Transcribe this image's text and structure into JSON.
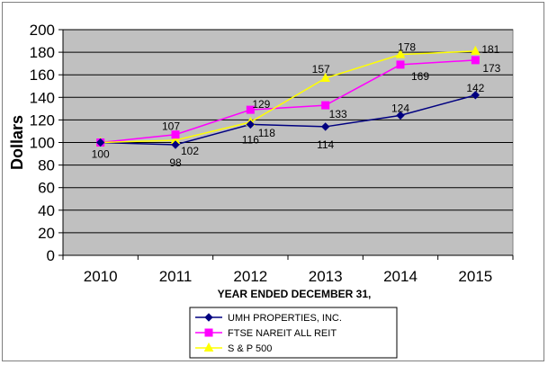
{
  "chart_data": {
    "type": "line",
    "categories": [
      "2010",
      "2011",
      "2012",
      "2013",
      "2014",
      "2015"
    ],
    "series": [
      {
        "name": "UMH PROPERTIES, INC.",
        "values": [
          100,
          98,
          116,
          114,
          124,
          142
        ],
        "color": "#000080",
        "marker": "diamond"
      },
      {
        "name": "FTSE NAREIT ALL REIT",
        "values": [
          100,
          107,
          129,
          133,
          169,
          173
        ],
        "color": "#ff00ff",
        "marker": "square"
      },
      {
        "name": "S & P 500",
        "values": [
          100,
          102,
          118,
          157,
          178,
          181
        ],
        "color": "#ffff00",
        "marker": "triangle"
      }
    ],
    "data_labels": [
      {
        "text": "100",
        "series": 0,
        "index": 0
      },
      {
        "text": "98",
        "series": 0,
        "index": 1
      },
      {
        "text": "116",
        "series": 0,
        "index": 2
      },
      {
        "text": "114",
        "series": 0,
        "index": 3
      },
      {
        "text": "124",
        "series": 0,
        "index": 4
      },
      {
        "text": "142",
        "series": 0,
        "index": 5
      },
      {
        "text": "107",
        "series": 1,
        "index": 1
      },
      {
        "text": "129",
        "series": 1,
        "index": 2
      },
      {
        "text": "133",
        "series": 1,
        "index": 3
      },
      {
        "text": "169",
        "series": 1,
        "index": 4
      },
      {
        "text": "173",
        "series": 1,
        "index": 5
      },
      {
        "text": "102",
        "series": 2,
        "index": 1
      },
      {
        "text": "118",
        "series": 2,
        "index": 2
      },
      {
        "text": "157",
        "series": 2,
        "index": 3
      },
      {
        "text": "178",
        "series": 2,
        "index": 4
      },
      {
        "text": "181",
        "series": 2,
        "index": 5
      }
    ],
    "xlabel": "YEAR ENDED DECEMBER 31,",
    "ylabel": "Dollars",
    "ylim": [
      0,
      200
    ],
    "yticks": [
      0,
      20,
      40,
      60,
      80,
      100,
      120,
      140,
      160,
      180,
      200
    ],
    "grid": true,
    "plot_background": "#c0c0c0",
    "legend_position": "bottom-center"
  }
}
